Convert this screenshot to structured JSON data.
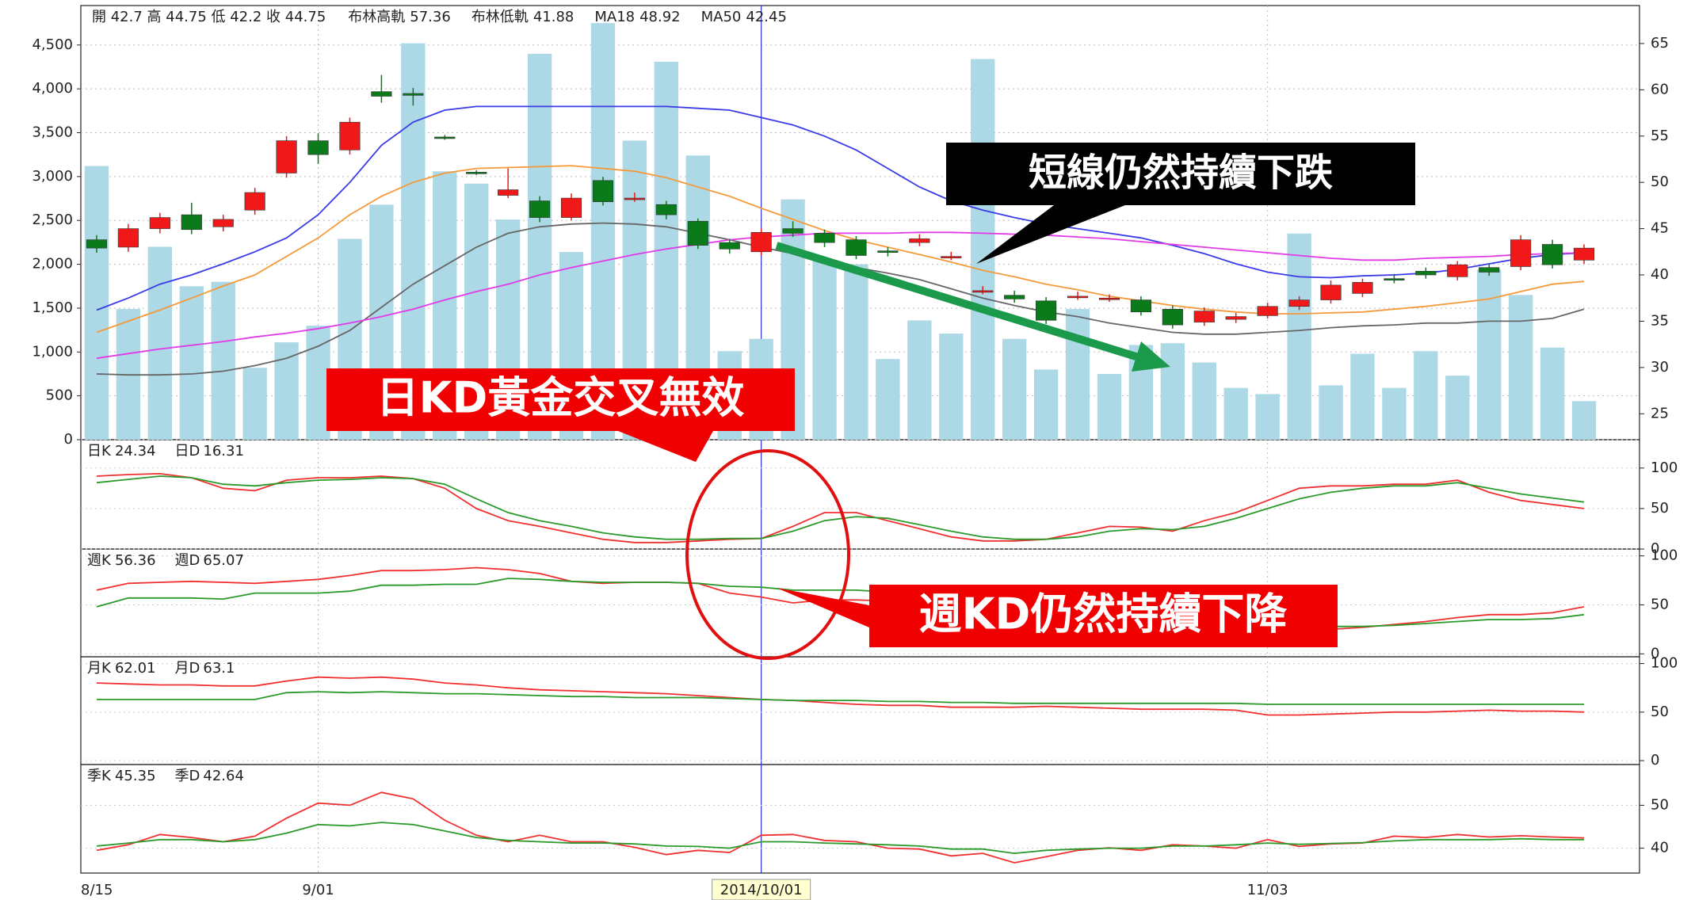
{
  "chart_data": {
    "type": "candlestick",
    "header": "開 42.7 高 44.75 低 42.2 收 44.75",
    "categories": [
      "8/15",
      null,
      null,
      null,
      null,
      null,
      null,
      "9/01",
      null,
      null,
      null,
      null,
      null,
      null,
      null,
      null,
      null,
      null,
      null,
      null,
      null,
      "2014/10/01",
      null,
      null,
      null,
      null,
      null,
      null,
      null,
      null,
      null,
      null,
      null,
      null,
      null,
      null,
      null,
      "11/03",
      null,
      null,
      null,
      null,
      null,
      null,
      null,
      null,
      null,
      null
    ],
    "open": [
      43.8,
      43.0,
      45.0,
      46.5,
      45.2,
      47.0,
      51.0,
      54.5,
      53.5,
      59.8,
      59.6,
      54.9,
      51.1,
      48.6,
      48.0,
      46.2,
      50.2,
      48.3,
      47.6,
      45.8,
      43.5,
      42.5,
      45.0,
      44.5,
      43.8,
      42.6,
      43.5,
      42.0,
      38.3,
      37.8,
      37.2,
      37.7,
      37.5,
      37.3,
      36.3,
      34.9,
      35.2,
      35.6,
      36.6,
      37.3,
      38.0,
      39.6,
      40.4,
      39.8,
      40.8,
      40.9,
      43.3,
      41.6
    ],
    "high": [
      44.3,
      45.5,
      46.7,
      47.8,
      46.5,
      49.4,
      55.0,
      55.3,
      57.0,
      61.6,
      60.2,
      55.1,
      51.3,
      51.5,
      48.5,
      48.8,
      50.6,
      48.9,
      48.0,
      46.1,
      43.9,
      45.0,
      45.8,
      44.9,
      44.2,
      43.0,
      44.4,
      42.5,
      38.8,
      38.3,
      37.6,
      38.2,
      37.9,
      37.7,
      36.7,
      36.5,
      35.9,
      37.0,
      37.7,
      39.4,
      39.6,
      40.1,
      40.8,
      41.5,
      41.2,
      44.3,
      43.8,
      43.3
    ],
    "low": [
      42.4,
      42.5,
      44.5,
      44.4,
      44.7,
      46.5,
      50.5,
      52.0,
      53.0,
      58.6,
      58.3,
      54.6,
      50.8,
      48.3,
      45.7,
      45.9,
      47.5,
      47.9,
      46.0,
      42.8,
      42.3,
      42.1,
      44.1,
      43.0,
      41.7,
      42.0,
      43.1,
      41.6,
      37.9,
      37.0,
      34.7,
      37.3,
      37.1,
      35.6,
      34.2,
      34.5,
      34.8,
      35.3,
      36.2,
      36.9,
      37.6,
      39.1,
      39.6,
      39.4,
      39.9,
      40.5,
      40.7,
      41.2
    ],
    "close": [
      42.9,
      45.0,
      46.2,
      44.9,
      46.0,
      48.9,
      54.5,
      53.0,
      56.5,
      59.3,
      59.4,
      54.8,
      51.0,
      49.2,
      46.2,
      48.3,
      47.9,
      48.3,
      46.5,
      43.2,
      42.8,
      44.6,
      44.5,
      43.5,
      42.1,
      42.5,
      43.9,
      42.0,
      38.3,
      37.4,
      35.1,
      37.7,
      37.5,
      36.0,
      34.6,
      36.1,
      35.5,
      36.6,
      37.3,
      38.9,
      39.2,
      39.5,
      40.0,
      41.1,
      40.3,
      43.8,
      41.1,
      42.9
    ],
    "up_color": "#f01818",
    "down_color": "#0a7a1a",
    "volume": {
      "color": "#add8e6",
      "values": [
        3120,
        1490,
        2200,
        1750,
        1800,
        820,
        1110,
        1300,
        2290,
        2680,
        4520,
        3060,
        2920,
        2510,
        4400,
        2140,
        4750,
        3410,
        4310,
        3240,
        1010,
        1150,
        2740,
        2050,
        2000,
        920,
        1360,
        1210,
        4340,
        1150,
        800,
        1490,
        750,
        1080,
        1100,
        880,
        590,
        520,
        2350,
        620,
        980,
        590,
        1010,
        730,
        1940,
        1650,
        1050,
        440
      ]
    },
    "ylim": [
      0,
      4950
    ],
    "yticks": [
      0,
      500,
      {
        "value": 1000,
        "label": "1,000"
      },
      {
        "value": 1500,
        "label": "1,500"
      },
      {
        "value": 2000,
        "label": "2,000"
      },
      {
        "value": 2500,
        "label": "2,500"
      },
      {
        "value": 3000,
        "label": "3,000"
      },
      {
        "value": 3500,
        "label": "3,500"
      },
      {
        "value": 4000,
        "label": "4,000"
      },
      {
        "value": 4500,
        "label": "4,500"
      }
    ],
    "y2lim": [
      22.2,
      69.1
    ],
    "y2ticks": [
      25,
      30,
      35,
      40,
      45,
      50,
      55,
      60,
      65
    ],
    "grid": true,
    "series": [
      {
        "name": "布林高軌",
        "legend_value": 57.36,
        "color": "#3a3ae8",
        "axis": "y2",
        "values": [
          36.2,
          37.5,
          39.0,
          40.0,
          41.2,
          42.5,
          44.0,
          46.5,
          50.0,
          54.0,
          56.5,
          57.8,
          58.2,
          58.2,
          58.2,
          58.2,
          58.2,
          58.2,
          58.2,
          58.0,
          57.8,
          57.0,
          56.2,
          55.0,
          53.5,
          51.5,
          49.5,
          48.0,
          47.0,
          46.2,
          45.5,
          45.0,
          44.5,
          44.0,
          43.2,
          42.3,
          41.2,
          40.3,
          39.8,
          39.7,
          39.9,
          40.0,
          40.2,
          40.6,
          41.2,
          41.8,
          42.2,
          42.4
        ]
      },
      {
        "name": "布林低軌",
        "legend_value": 41.88,
        "color": "#666666",
        "axis": "y2",
        "values": [
          29.3,
          29.2,
          29.2,
          29.3,
          29.6,
          30.2,
          31.0,
          32.3,
          34.0,
          36.5,
          39.0,
          41.0,
          43.0,
          44.5,
          45.2,
          45.5,
          45.6,
          45.5,
          45.2,
          44.5,
          43.8,
          43.0,
          42.3,
          41.5,
          40.8,
          40.2,
          39.5,
          38.5,
          37.5,
          36.7,
          36.0,
          35.5,
          34.8,
          34.3,
          33.8,
          33.6,
          33.6,
          33.8,
          34.0,
          34.3,
          34.5,
          34.6,
          34.8,
          34.8,
          35.0,
          35.0,
          35.3,
          36.3
        ]
      },
      {
        "name": "MA18",
        "legend_value": 48.92,
        "color": "#f59a3a",
        "axis": "y2",
        "values": [
          33.8,
          35.0,
          36.2,
          37.5,
          38.8,
          40.0,
          42.0,
          44.0,
          46.5,
          48.5,
          50.0,
          51.0,
          51.5,
          51.6,
          51.7,
          51.8,
          51.5,
          51.2,
          50.5,
          49.5,
          48.5,
          47.2,
          46.0,
          44.8,
          43.8,
          43.0,
          42.2,
          41.4,
          40.5,
          39.8,
          39.0,
          38.4,
          37.7,
          37.2,
          36.7,
          36.3,
          36.0,
          35.8,
          35.8,
          35.9,
          36.0,
          36.3,
          36.6,
          37.0,
          37.4,
          38.2,
          39.0,
          39.3
        ]
      },
      {
        "name": "MA50",
        "legend_value": 42.45,
        "color": "#e23ae8",
        "axis": "y2",
        "values": [
          31.0,
          31.5,
          32.0,
          32.4,
          32.8,
          33.3,
          33.7,
          34.2,
          34.8,
          35.5,
          36.3,
          37.3,
          38.2,
          39.0,
          40.0,
          40.8,
          41.5,
          42.2,
          42.8,
          43.3,
          43.8,
          44.1,
          44.3,
          44.5,
          44.5,
          44.5,
          44.6,
          44.6,
          44.5,
          44.4,
          44.3,
          44.1,
          43.9,
          43.6,
          43.3,
          43.0,
          42.7,
          42.4,
          42.1,
          41.8,
          41.6,
          41.6,
          41.8,
          41.9,
          42.0,
          42.2,
          42.3,
          42.4
        ]
      }
    ],
    "indicators": [
      {
        "ylim": [
          0,
          135
        ],
        "yticks": [
          0,
          50,
          100
        ],
        "series": [
          {
            "name": "日K",
            "legend_value": 24.34,
            "color": "#f03030",
            "values": [
              90,
              92,
              93,
              88,
              75,
              72,
              85,
              88,
              88,
              90,
              87,
              75,
              50,
              35,
              28,
              20,
              12,
              8,
              8,
              10,
              12,
              13,
              28,
              45,
              45,
              35,
              25,
              15,
              10,
              10,
              12,
              20,
              28,
              27,
              22,
              35,
              45,
              60,
              75,
              78,
              78,
              80,
              80,
              85,
              70,
              60,
              55,
              50
            ]
          },
          {
            "name": "日D",
            "legend_value": 16.31,
            "color": "#2a9a2a",
            "values": [
              82,
              86,
              90,
              88,
              80,
              78,
              82,
              85,
              86,
              88,
              87,
              80,
              62,
              45,
              35,
              28,
              20,
              15,
              12,
              12,
              13,
              13,
              22,
              35,
              40,
              38,
              30,
              22,
              15,
              12,
              12,
              15,
              22,
              25,
              24,
              28,
              38,
              50,
              62,
              70,
              75,
              78,
              78,
              82,
              75,
              68,
              63,
              58
            ]
          }
        ]
      },
      {
        "ylim": [
          -3,
          107
        ],
        "yticks": [
          0,
          50,
          100
        ],
        "series": [
          {
            "name": "週K",
            "legend_value": 56.36,
            "color": "#f03030",
            "values": [
              65,
              72,
              73,
              74,
              73,
              72,
              74,
              76,
              80,
              85,
              85,
              86,
              88,
              86,
              82,
              74,
              72,
              73,
              73,
              72,
              62,
              58,
              52,
              55,
              55,
              54,
              52,
              50,
              45,
              42,
              38,
              35,
              32,
              30,
              28,
              27,
              26,
              25,
              26,
              25,
              27,
              30,
              33,
              37,
              40,
              40,
              42,
              48
            ]
          },
          {
            "name": "週D",
            "legend_value": 65.07,
            "color": "#2a9a2a",
            "values": [
              48,
              57,
              57,
              57,
              56,
              62,
              62,
              62,
              64,
              70,
              70,
              71,
              71,
              77,
              76,
              74,
              73,
              73,
              73,
              72,
              69,
              68,
              65,
              65,
              65,
              63,
              62,
              60,
              56,
              52,
              48,
              45,
              42,
              38,
              35,
              33,
              31,
              30,
              29,
              28,
              28,
              29,
              31,
              33,
              35,
              35,
              36,
              40
            ]
          }
        ]
      },
      {
        "ylim": [
          -4,
          107
        ],
        "yticks": [
          0,
          50,
          100
        ],
        "series": [
          {
            "name": "月K",
            "legend_value": 62.01,
            "color": "#f03030",
            "values": [
              80,
              79,
              78,
              78,
              77,
              77,
              82,
              86,
              85,
              86,
              84,
              80,
              78,
              75,
              73,
              72,
              71,
              70,
              69,
              67,
              65,
              63,
              62,
              60,
              58,
              57,
              57,
              55,
              55,
              55,
              56,
              55,
              54,
              53,
              53,
              53,
              52,
              47,
              47,
              48,
              49,
              50,
              50,
              51,
              52,
              51,
              51,
              50
            ]
          },
          {
            "name": "月D",
            "legend_value": 63.1,
            "color": "#2a9a2a",
            "values": [
              63,
              63,
              63,
              63,
              63,
              63,
              70,
              71,
              70,
              71,
              70,
              69,
              69,
              68,
              67,
              66,
              66,
              65,
              65,
              65,
              64,
              63,
              62,
              62,
              62,
              61,
              61,
              60,
              60,
              59,
              59,
              59,
              59,
              59,
              59,
              59,
              59,
              58,
              58,
              58,
              58,
              58,
              58,
              58,
              58,
              58,
              58,
              58
            ]
          }
        ]
      },
      {
        "ylim": [
          34.2,
          59.5
        ],
        "yticks": [
          40,
          50
        ],
        "series": [
          {
            "name": "季K",
            "legend_value": 45.35,
            "color": "#f03030",
            "values": [
              39.5,
              40.8,
              43.2,
              42.5,
              41.5,
              42.8,
              47,
              50.5,
              50.0,
              53.0,
              51.5,
              46.5,
              43.0,
              41.5,
              43,
              41.5,
              41.5,
              40.2,
              38.5,
              39.5,
              39.0,
              43.0,
              43.2,
              41.8,
              41.5,
              40.0,
              39.8,
              38.2,
              38.8,
              36.6,
              38.0,
              39.5,
              40.1,
              39.5,
              40.8,
              40.5,
              40.0,
              42.0,
              40.4,
              41.0,
              41.2,
              42.8,
              42.5,
              43.2,
              42.6,
              42.9,
              42.6,
              42.4
            ]
          },
          {
            "name": "季D",
            "legend_value": 42.64,
            "color": "#2a9a2a",
            "values": [
              40.5,
              41.2,
              42.0,
              42.0,
              41.5,
              42.0,
              43.5,
              45.5,
              45.2,
              46.0,
              45.5,
              44.0,
              42.5,
              41.8,
              41.5,
              41.2,
              41.2,
              41.0,
              40.5,
              40.4,
              40.0,
              41.5,
              41.5,
              41.2,
              41.0,
              40.8,
              40.5,
              39.8,
              39.8,
              38.8,
              39.5,
              39.8,
              40.0,
              40.0,
              40.5,
              40.5,
              40.8,
              41.2,
              40.9,
              41.1,
              41.3,
              41.7,
              42.0,
              42.0,
              42.0,
              42.2,
              42.0,
              42.0
            ]
          }
        ]
      }
    ],
    "annotations": [
      "短線仍然持續下跌",
      "日KD黃金交叉無效",
      "週KD仍然持續下降"
    ]
  }
}
